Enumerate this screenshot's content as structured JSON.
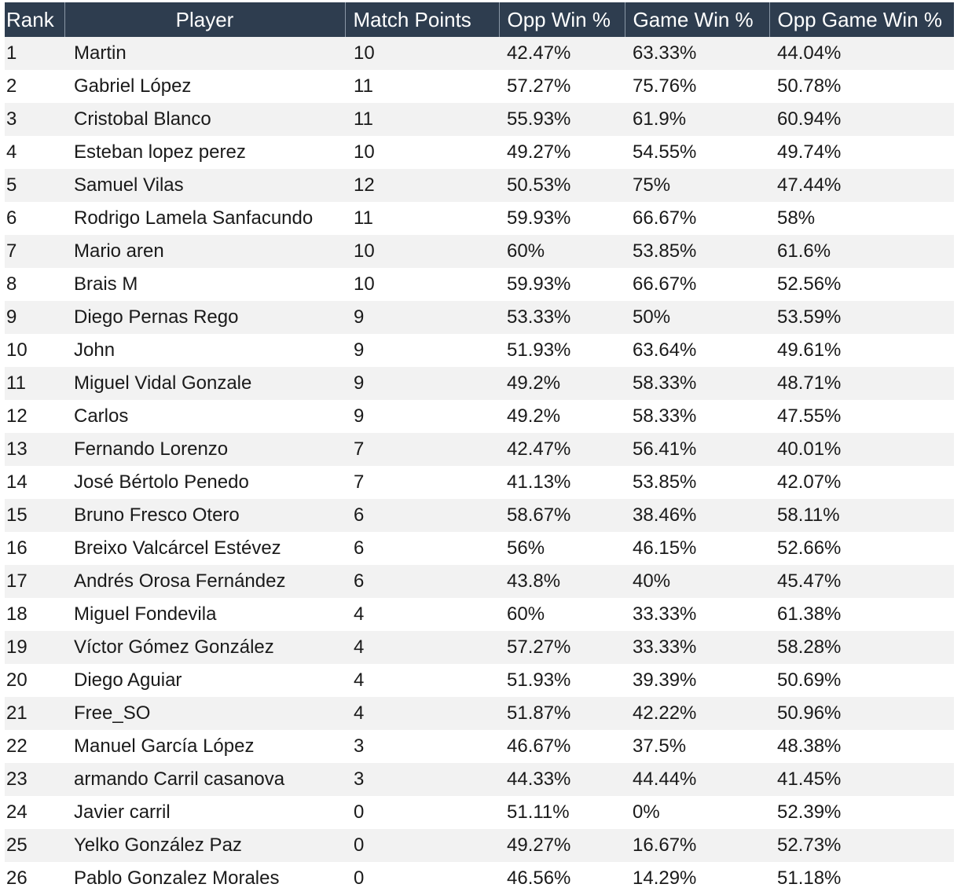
{
  "table": {
    "headers": [
      "Rank",
      "Player",
      "Match Points",
      "Opp Win %",
      "Game Win %",
      "Opp Game Win %"
    ],
    "rows": [
      [
        "1",
        "Martin",
        "10",
        "42.47%",
        "63.33%",
        "44.04%"
      ],
      [
        "2",
        "Gabriel López",
        "11",
        "57.27%",
        "75.76%",
        "50.78%"
      ],
      [
        "3",
        "Cristobal Blanco",
        "11",
        "55.93%",
        "61.9%",
        "60.94%"
      ],
      [
        "4",
        "Esteban lopez perez",
        "10",
        "49.27%",
        "54.55%",
        "49.74%"
      ],
      [
        "5",
        "Samuel Vilas",
        "12",
        "50.53%",
        "75%",
        "47.44%"
      ],
      [
        "6",
        "Rodrigo Lamela Sanfacundo",
        "11",
        "59.93%",
        "66.67%",
        "58%"
      ],
      [
        "7",
        "Mario aren",
        "10",
        "60%",
        "53.85%",
        "61.6%"
      ],
      [
        "8",
        "Brais M",
        "10",
        "59.93%",
        "66.67%",
        "52.56%"
      ],
      [
        "9",
        "Diego Pernas Rego",
        "9",
        "53.33%",
        "50%",
        "53.59%"
      ],
      [
        "10",
        "John",
        "9",
        "51.93%",
        "63.64%",
        "49.61%"
      ],
      [
        "11",
        "Miguel Vidal Gonzale",
        "9",
        "49.2%",
        "58.33%",
        "48.71%"
      ],
      [
        "12",
        "Carlos",
        "9",
        "49.2%",
        "58.33%",
        "47.55%"
      ],
      [
        "13",
        "Fernando Lorenzo",
        "7",
        "42.47%",
        "56.41%",
        "40.01%"
      ],
      [
        "14",
        "José Bértolo Penedo",
        "7",
        "41.13%",
        "53.85%",
        "42.07%"
      ],
      [
        "15",
        "Bruno Fresco Otero",
        "6",
        "58.67%",
        "38.46%",
        "58.11%"
      ],
      [
        "16",
        "Breixo Valcárcel Estévez",
        "6",
        "56%",
        "46.15%",
        "52.66%"
      ],
      [
        "17",
        "Andrés Orosa Fernández",
        "6",
        "43.8%",
        "40%",
        "45.47%"
      ],
      [
        "18",
        "Miguel Fondevila",
        "4",
        "60%",
        "33.33%",
        "61.38%"
      ],
      [
        "19",
        "Víctor Gómez González",
        "4",
        "57.27%",
        "33.33%",
        "58.28%"
      ],
      [
        "20",
        "Diego Aguiar",
        "4",
        "51.93%",
        "39.39%",
        "50.69%"
      ],
      [
        "21",
        "Free_SO",
        "4",
        "51.87%",
        "42.22%",
        "50.96%"
      ],
      [
        "22",
        "Manuel García López",
        "3",
        "46.67%",
        "37.5%",
        "48.38%"
      ],
      [
        "23",
        "armando Carril casanova",
        "3",
        "44.33%",
        "44.44%",
        "41.45%"
      ],
      [
        "24",
        "Javier carril",
        "0",
        "51.11%",
        "0%",
        "52.39%"
      ],
      [
        "25",
        "Yelko González Paz",
        "0",
        "49.27%",
        "16.67%",
        "52.73%"
      ],
      [
        "26",
        "Pablo Gonzalez Morales",
        "0",
        "46.56%",
        "14.29%",
        "51.18%"
      ]
    ]
  },
  "colors": {
    "header_bg": "#2e3d4f",
    "header_text": "#ffffff",
    "row_stripe": "#f2f2f2",
    "row_plain": "#ffffff"
  }
}
